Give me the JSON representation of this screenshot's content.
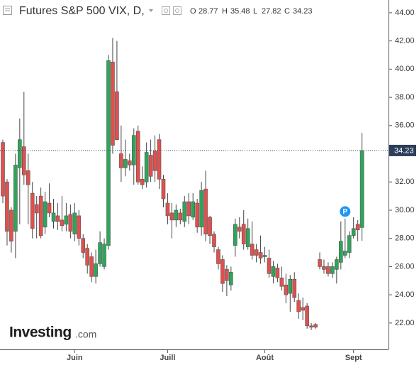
{
  "chart_data": {
    "type": "candlestick",
    "title": "Futures S&P 500 VIX, D,",
    "ohlc_labels": [
      "O",
      "H",
      "L",
      "C"
    ],
    "watermark": [
      "Investing",
      ".com"
    ],
    "annotation": "P",
    "up_color": "#2ea55a",
    "down_color": "#e0504d",
    "categories": [
      null,
      null,
      null,
      null,
      null,
      null,
      null,
      null,
      null,
      null,
      null,
      null,
      null,
      null,
      null,
      null,
      null,
      "Juin",
      null,
      null,
      null,
      null,
      null,
      null,
      null,
      null,
      null,
      null,
      null,
      null,
      null,
      null,
      null,
      null,
      null,
      null,
      null,
      null,
      null,
      "Juill",
      null,
      null,
      null,
      null,
      null,
      null,
      null,
      null,
      null,
      null,
      null,
      null,
      null,
      null,
      null,
      null,
      null,
      null,
      null,
      null,
      null,
      null,
      "Août",
      null,
      null,
      null,
      null,
      null,
      null,
      null,
      null,
      null,
      null,
      null,
      null,
      null,
      null,
      null,
      null,
      null,
      null,
      null,
      null,
      "Sept",
      null,
      null
    ],
    "open": [
      34.8,
      32,
      30,
      28.5,
      33,
      34.5,
      32.8,
      31.2,
      30.4,
      31,
      28.8,
      30.5,
      29.2,
      29.6,
      29.3,
      29,
      29.7,
      28.3,
      29.6,
      28,
      27.3,
      26.7,
      25.3,
      26.2,
      26,
      27.5,
      40.5,
      38.4,
      34,
      33,
      33.5,
      33.2,
      35.6,
      32.2,
      32,
      33.9,
      34.2,
      35,
      32.2,
      30.5,
      29.8,
      29.3,
      29.8,
      29.2,
      30.6,
      29.5,
      30.5,
      28.8,
      31.5,
      29.5,
      28.3,
      27.2,
      26.5,
      25.8,
      24.7,
      27.5,
      28.8,
      29,
      27.4,
      27.6,
      27.2,
      27,
      26.7,
      26.6,
      25.3,
      25.9,
      25.2,
      24.7,
      24.1,
      25.1,
      23.6,
      23.1,
      23.2,
      21.8,
      21.9,
      26.5,
      26,
      26,
      25.5,
      25.8,
      26.3,
      26.8,
      27,
      28.2,
      29,
      28.77
    ],
    "high": [
      35,
      32.2,
      30.2,
      34,
      36.5,
      38.4,
      34,
      32,
      31,
      31.6,
      31.3,
      31.9,
      30.8,
      30.5,
      31,
      30.5,
      30.4,
      30.5,
      30,
      28.3,
      27.6,
      27,
      27.2,
      28.5,
      28,
      41,
      42.2,
      42,
      36,
      35,
      34,
      35.8,
      36,
      33.1,
      34.8,
      35,
      35.3,
      35.4,
      32.5,
      31.2,
      30.5,
      30.4,
      30.1,
      31,
      31.2,
      31.2,
      30.8,
      32,
      32.8,
      29.6,
      28.5,
      27.4,
      26.8,
      26.1,
      26,
      29.4,
      29.5,
      30,
      29.4,
      29.2,
      27.6,
      28.2,
      27.4,
      27.2,
      26.4,
      26.2,
      26,
      25.5,
      25.4,
      25.6,
      24.1,
      23.8,
      23.4,
      22,
      22,
      27,
      26.5,
      26.3,
      26.3,
      26.7,
      29.2,
      29.4,
      28.5,
      29.5,
      29.3,
      35.48
    ],
    "low": [
      30.5,
      27.5,
      27,
      26.6,
      29,
      31.8,
      29,
      28,
      28,
      28,
      28.3,
      29.5,
      28.7,
      28.6,
      28.5,
      28.5,
      28,
      27.8,
      27.5,
      26.6,
      25.5,
      24.9,
      24.8,
      26,
      25.8,
      27.2,
      34,
      35,
      32,
      32.4,
      32.8,
      31.8,
      31.8,
      31.5,
      31.6,
      32,
      32,
      31.5,
      30.2,
      29,
      28,
      28.8,
      29,
      28.8,
      29,
      29.3,
      28.4,
      28.2,
      27.8,
      27.6,
      27,
      25.8,
      24.2,
      23.9,
      24.3,
      26.7,
      28,
      27.2,
      27.2,
      26.5,
      26.3,
      26.2,
      26.3,
      25.2,
      24.8,
      24.9,
      24.3,
      23.4,
      22.8,
      23.5,
      22.3,
      22.2,
      21.6,
      21.5,
      21.6,
      25.8,
      25.5,
      25.3,
      25.2,
      24.8,
      25.8,
      26.6,
      26.6,
      28,
      27.8,
      27.82
    ],
    "close": [
      31,
      28.5,
      27.8,
      33.2,
      35,
      32.5,
      31.8,
      28.7,
      29.8,
      28.2,
      30.6,
      29.8,
      29.8,
      29.2,
      28.9,
      29.6,
      28.5,
      29.8,
      28,
      27,
      26.1,
      25.3,
      26.2,
      27.7,
      27.6,
      40.6,
      34.6,
      35,
      33,
      33.6,
      33.2,
      35.3,
      32,
      31.8,
      34.1,
      32.4,
      32.8,
      32.2,
      30.8,
      29.6,
      29.3,
      30,
      29.3,
      30.6,
      29.6,
      30.6,
      28.8,
      31.4,
      28.3,
      28.2,
      27.4,
      26.2,
      24.8,
      25,
      25.6,
      29,
      28.5,
      27.6,
      28.7,
      26.8,
      26.8,
      26.6,
      26.8,
      25.5,
      26,
      25.2,
      24.6,
      24,
      25.1,
      23.8,
      22.8,
      22.9,
      21.8,
      21.7,
      21.7,
      26,
      25.8,
      25.5,
      26,
      26.5,
      27.8,
      27.1,
      28.2,
      28.7,
      28.6,
      34.23
    ],
    "ylim": [
      20.13,
      44.9
    ],
    "yticks": [
      {
        "value": 22,
        "label": "22.00"
      },
      {
        "value": 24,
        "label": "24.00"
      },
      {
        "value": 26,
        "label": "26.00"
      },
      {
        "value": 28,
        "label": "28.00"
      },
      {
        "value": 30,
        "label": "30.00"
      },
      {
        "value": 32,
        "label": "32.00"
      },
      {
        "value": 34,
        "label": "34.00"
      },
      {
        "value": 36,
        "label": "36.00"
      },
      {
        "value": 38,
        "label": "38.00"
      },
      {
        "value": 40,
        "label": "40.00"
      },
      {
        "value": 42,
        "label": "42.00"
      },
      {
        "value": 44,
        "label": "44.00"
      }
    ],
    "grid": false
  }
}
